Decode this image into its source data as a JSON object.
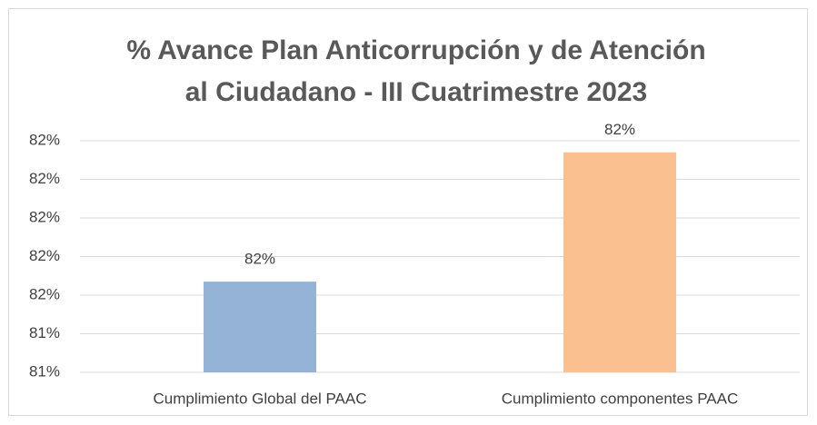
{
  "chart_data": {
    "type": "bar",
    "title": [
      "% Avance Plan Anticorrupción y de Atención",
      "al Ciudadano - III Cuatrimestre 2023"
    ],
    "categories": [
      "Cumplimiento Global del PAAC",
      "Cumplimiento componentes PAAC"
    ],
    "values": [
      81.67,
      82.34
    ],
    "value_labels": [
      "82%",
      "82%"
    ],
    "colors": [
      "#95b3d7",
      "#fac090"
    ],
    "ylim": [
      81.2,
      82.4
    ],
    "yticks": [
      {
        "value": 81.2,
        "label": "81%"
      },
      {
        "value": 81.4,
        "label": "81%"
      },
      {
        "value": 81.6,
        "label": "82%"
      },
      {
        "value": 81.8,
        "label": "82%"
      },
      {
        "value": 82.0,
        "label": "82%"
      },
      {
        "value": 82.2,
        "label": "82%"
      },
      {
        "value": 82.4,
        "label": "82%"
      }
    ],
    "grid": true
  }
}
